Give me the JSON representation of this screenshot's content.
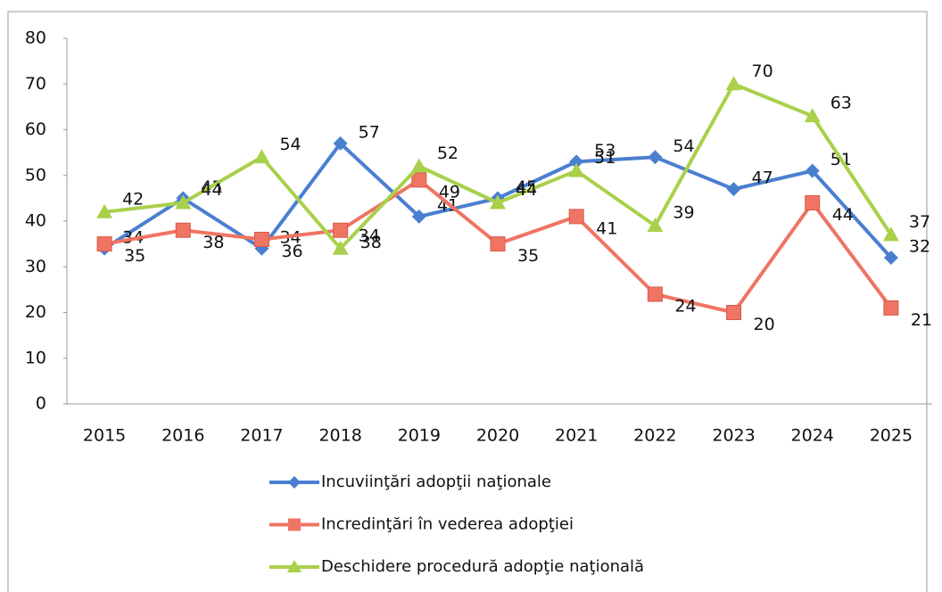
{
  "chart_data": {
    "type": "line",
    "categories": [
      "2015",
      "2016",
      "2017",
      "2018",
      "2019",
      "2020",
      "2021",
      "2022",
      "2023",
      "2024",
      "2025"
    ],
    "series": [
      {
        "name": "Incuviinţări adopţii naţionale",
        "color": "#4a7fd0",
        "marker": "diamond",
        "values": [
          34,
          45,
          34,
          57,
          41,
          45,
          53,
          54,
          47,
          51,
          32
        ]
      },
      {
        "name": "Incredinţări în vederea adopţiei",
        "color": "#f07463",
        "marker": "square",
        "values": [
          35,
          38,
          36,
          38,
          49,
          35,
          41,
          24,
          20,
          44,
          21
        ]
      },
      {
        "name": "Deschidere procedură adopţie naţională",
        "color": "#a9d04a",
        "marker": "triangle",
        "values": [
          42,
          44,
          54,
          34,
          52,
          44,
          51,
          39,
          70,
          63,
          37
        ]
      }
    ],
    "ylim": [
      0,
      80
    ],
    "yticks": [
      0,
      10,
      20,
      30,
      40,
      50,
      60,
      70,
      80
    ],
    "grid": false,
    "legend": "bottom"
  }
}
